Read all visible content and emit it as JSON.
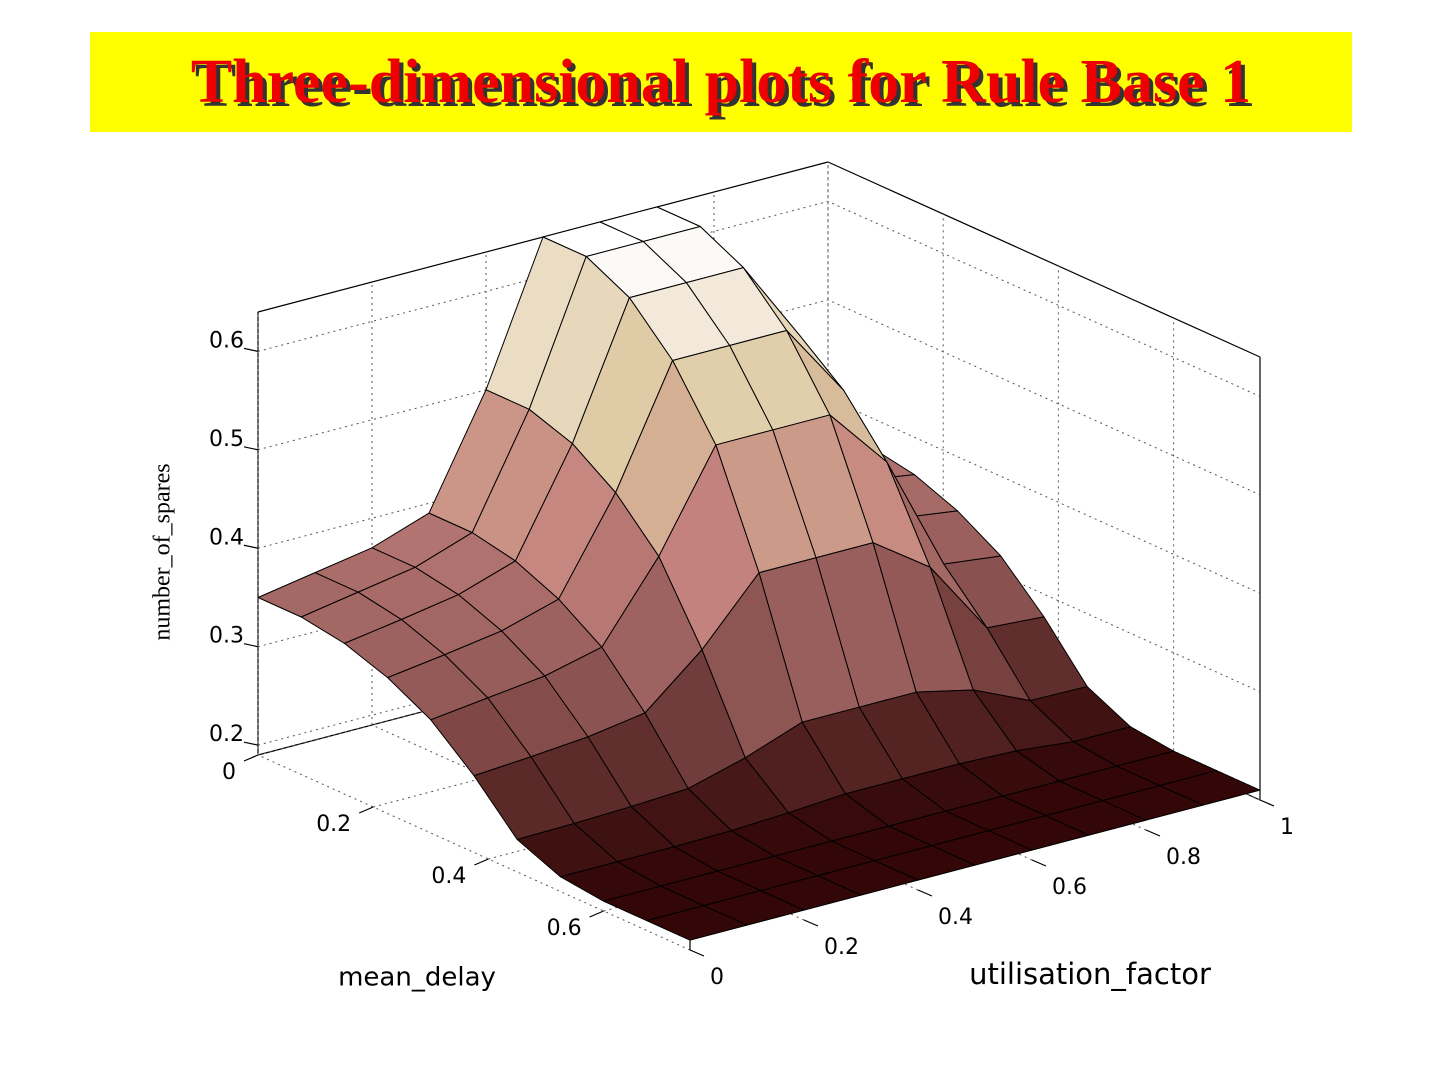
{
  "chart_data": {
    "type": "surface",
    "title": "Three-dimensional plots for Rule Base 1",
    "xlabel": "utilisation_factor",
    "ylabel": "mean_delay",
    "zlabel": "number_of_spares",
    "x": [
      0,
      0.1,
      0.2,
      0.3,
      0.4,
      0.5,
      0.6,
      0.7,
      0.8,
      0.9,
      1
    ],
    "y": [
      0,
      0.075,
      0.15,
      0.225,
      0.3,
      0.375,
      0.45,
      0.525,
      0.6,
      0.675,
      0.75
    ],
    "z": [
      [
        0.35,
        0.36,
        0.37,
        0.39,
        0.5,
        0.64,
        0.64,
        0.64,
        0.55,
        0.38,
        0.37
      ],
      [
        0.35,
        0.36,
        0.37,
        0.39,
        0.5,
        0.64,
        0.64,
        0.64,
        0.55,
        0.38,
        0.37
      ],
      [
        0.343,
        0.352,
        0.362,
        0.381,
        0.485,
        0.618,
        0.618,
        0.618,
        0.533,
        0.371,
        0.362
      ],
      [
        0.328,
        0.336,
        0.345,
        0.362,
        0.455,
        0.574,
        0.574,
        0.574,
        0.498,
        0.353,
        0.345
      ],
      [
        0.305,
        0.312,
        0.319,
        0.333,
        0.41,
        0.508,
        0.508,
        0.508,
        0.445,
        0.326,
        0.319
      ],
      [
        0.268,
        0.272,
        0.277,
        0.286,
        0.335,
        0.398,
        0.398,
        0.398,
        0.358,
        0.281,
        0.277
      ],
      [
        0.223,
        0.224,
        0.226,
        0.229,
        0.245,
        0.266,
        0.266,
        0.266,
        0.253,
        0.227,
        0.226
      ],
      [
        0.205,
        0.205,
        0.205,
        0.206,
        0.209,
        0.213,
        0.213,
        0.213,
        0.211,
        0.205,
        0.205
      ],
      [
        0.2,
        0.2,
        0.2,
        0.2,
        0.2,
        0.2,
        0.2,
        0.2,
        0.2,
        0.2,
        0.2
      ],
      [
        0.2,
        0.2,
        0.2,
        0.2,
        0.2,
        0.2,
        0.2,
        0.2,
        0.2,
        0.2,
        0.2
      ],
      [
        0.2,
        0.2,
        0.2,
        0.2,
        0.2,
        0.2,
        0.2,
        0.2,
        0.2,
        0.2,
        0.2
      ]
    ],
    "xlim": [
      0,
      1
    ],
    "ylim": [
      0,
      0.75
    ],
    "zlim": [
      0.19,
      0.64
    ],
    "xticks": [
      0,
      0.2,
      0.4,
      0.6,
      0.8,
      1
    ],
    "yticks": [
      0,
      0.2,
      0.4,
      0.6
    ],
    "zticks": [
      0.2,
      0.3,
      0.4,
      0.5,
      0.6
    ],
    "grid": true,
    "colormap": [
      "#2a0000",
      "#8a5250",
      "#c4837e",
      "#ddc8a0",
      "#ffffff"
    ]
  }
}
